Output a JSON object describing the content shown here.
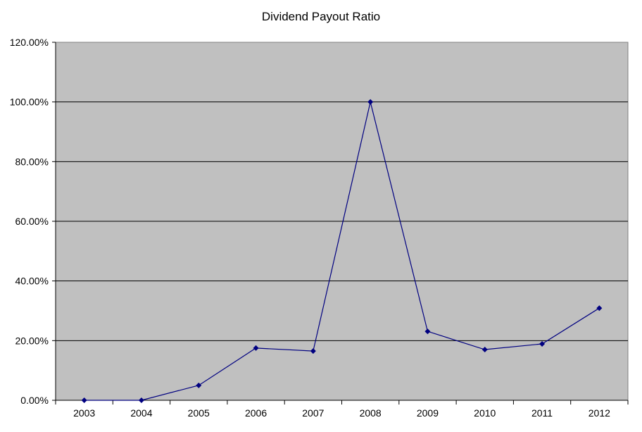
{
  "chart_data": {
    "type": "line",
    "title": "Dividend Payout Ratio",
    "xlabel": "",
    "ylabel": "",
    "categories": [
      "2003",
      "2004",
      "2005",
      "2006",
      "2007",
      "2008",
      "2009",
      "2010",
      "2011",
      "2012"
    ],
    "series": [
      {
        "name": "Dividend Payout Ratio",
        "values": [
          0.0,
          0.0,
          5.0,
          17.5,
          16.5,
          100.0,
          23.1,
          17.0,
          18.9,
          30.9
        ],
        "color": "#000080",
        "marker": "diamond"
      }
    ],
    "ylim": [
      0,
      120
    ],
    "yticks": [
      0,
      20,
      40,
      60,
      80,
      100,
      120
    ],
    "ytick_labels": [
      "0.00%",
      "20.00%",
      "40.00%",
      "60.00%",
      "80.00%",
      "100.00%",
      "120.00%"
    ],
    "grid": "horizontal",
    "legend": "none",
    "plot_background": "#c0c0c0"
  }
}
